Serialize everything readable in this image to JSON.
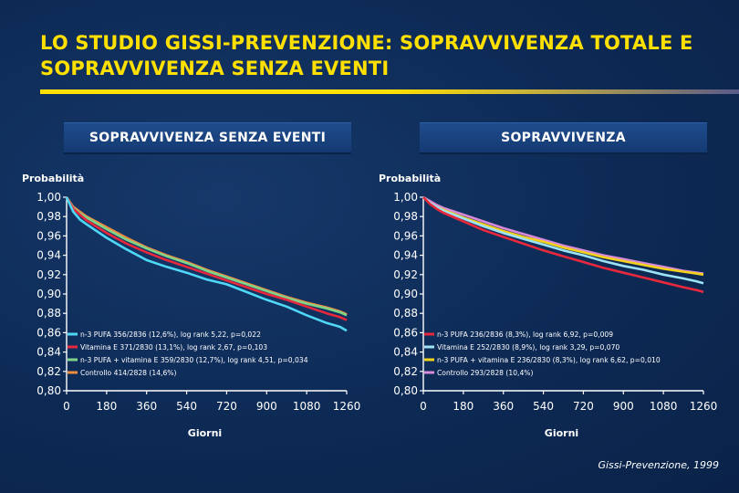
{
  "title": "LO STUDIO GISSI-PREVENZIONE: SOPRAVVIVENZA TOTALE E SOPRAVVIVENZA SENZA EVENTI",
  "citation": "Gissi-Prevenzione, 1999",
  "chart_data": [
    {
      "type": "line",
      "title": "SOPRAVVIVENZA SENZA EVENTI",
      "ylabel": "Probabilità",
      "xlabel": "Giorni",
      "xlim": [
        0,
        1260
      ],
      "ylim": [
        0.8,
        1.0
      ],
      "xticks": [
        "0",
        "180",
        "360",
        "540",
        "720",
        "900",
        "1080",
        "1260"
      ],
      "yticks": [
        "1,00",
        "0,98",
        "0,96",
        "0,94",
        "0,92",
        "0,90",
        "0,88",
        "0,86",
        "0,84",
        "0,82",
        "0,80"
      ],
      "legend_position": "bottom-left",
      "x": [
        0,
        30,
        60,
        90,
        180,
        270,
        360,
        450,
        540,
        630,
        720,
        810,
        900,
        990,
        1080,
        1170,
        1230,
        1260
      ],
      "series": [
        {
          "name": "n-3 PUFA 356/2836 (12,6%), log rank 5,22, p=0,022",
          "color": "#4fd7f5",
          "values": [
            1.0,
            0.985,
            0.977,
            0.972,
            0.958,
            0.946,
            0.935,
            0.928,
            0.922,
            0.915,
            0.91,
            0.902,
            0.894,
            0.887,
            0.878,
            0.87,
            0.866,
            0.862
          ]
        },
        {
          "name": "Vitamina E 371/2830 (13,1%), log rank 2,67, p=0,103",
          "color": "#e8283c",
          "values": [
            1.0,
            0.988,
            0.982,
            0.976,
            0.963,
            0.952,
            0.943,
            0.935,
            0.928,
            0.921,
            0.914,
            0.907,
            0.9,
            0.894,
            0.887,
            0.88,
            0.876,
            0.873
          ]
        },
        {
          "name": "n-3 PUFA + vitamina E 359/2830 (12,7%), log rank 4,51, p=0,034",
          "color": "#7fd48a",
          "values": [
            1.0,
            0.989,
            0.983,
            0.979,
            0.967,
            0.956,
            0.947,
            0.939,
            0.932,
            0.924,
            0.917,
            0.91,
            0.903,
            0.896,
            0.89,
            0.885,
            0.881,
            0.878
          ]
        },
        {
          "name": "Controllo 414/2828 (14,6%)",
          "color": "#f08a3c",
          "values": [
            1.0,
            0.99,
            0.985,
            0.98,
            0.969,
            0.958,
            0.948,
            0.94,
            0.933,
            0.925,
            0.918,
            0.911,
            0.904,
            0.897,
            0.891,
            0.886,
            0.882,
            0.879
          ]
        }
      ]
    },
    {
      "type": "line",
      "title": "SOPRAVVIVENZA",
      "ylabel": "Probabilità",
      "xlabel": "Giorni",
      "xlim": [
        0,
        1260
      ],
      "ylim": [
        0.8,
        1.0
      ],
      "xticks": [
        "0",
        "180",
        "360",
        "540",
        "720",
        "900",
        "1080",
        "1260"
      ],
      "yticks": [
        "1,00",
        "0,98",
        "0,96",
        "0,94",
        "0,92",
        "0,90",
        "0,88",
        "0,86",
        "0,84",
        "0,82",
        "0,80"
      ],
      "legend_position": "bottom-left",
      "x": [
        0,
        30,
        60,
        90,
        180,
        270,
        360,
        450,
        540,
        630,
        720,
        810,
        900,
        990,
        1080,
        1170,
        1230,
        1260
      ],
      "series": [
        {
          "name": "n-3 PUFA 236/2836 (8,3%), log rank 6,92, p=0,009",
          "color": "#e8283c",
          "values": [
            1.0,
            0.993,
            0.988,
            0.984,
            0.975,
            0.966,
            0.959,
            0.952,
            0.945,
            0.939,
            0.933,
            0.927,
            0.922,
            0.917,
            0.912,
            0.907,
            0.904,
            0.902
          ]
        },
        {
          "name": "Vitamina E 252/2830 (8,9%), log rank 3,29, p=0,070",
          "color": "#9ee3f5",
          "values": [
            1.0,
            0.994,
            0.99,
            0.986,
            0.978,
            0.97,
            0.963,
            0.957,
            0.951,
            0.945,
            0.94,
            0.934,
            0.929,
            0.925,
            0.92,
            0.916,
            0.913,
            0.911
          ]
        },
        {
          "name": "n-3 PUFA + vitamina E 236/2830 (8,3%), log rank 6,62, p=0,010",
          "color": "#f2d21a",
          "values": [
            1.0,
            0.994,
            0.99,
            0.987,
            0.979,
            0.972,
            0.965,
            0.959,
            0.954,
            0.948,
            0.943,
            0.938,
            0.934,
            0.93,
            0.926,
            0.923,
            0.921,
            0.92
          ]
        },
        {
          "name": "Controllo 293/2828 (10,4%)",
          "color": "#d98ad8",
          "values": [
            1.0,
            0.996,
            0.992,
            0.989,
            0.982,
            0.975,
            0.968,
            0.962,
            0.956,
            0.95,
            0.945,
            0.94,
            0.936,
            0.932,
            0.928,
            0.924,
            0.922,
            0.921
          ]
        }
      ]
    }
  ]
}
